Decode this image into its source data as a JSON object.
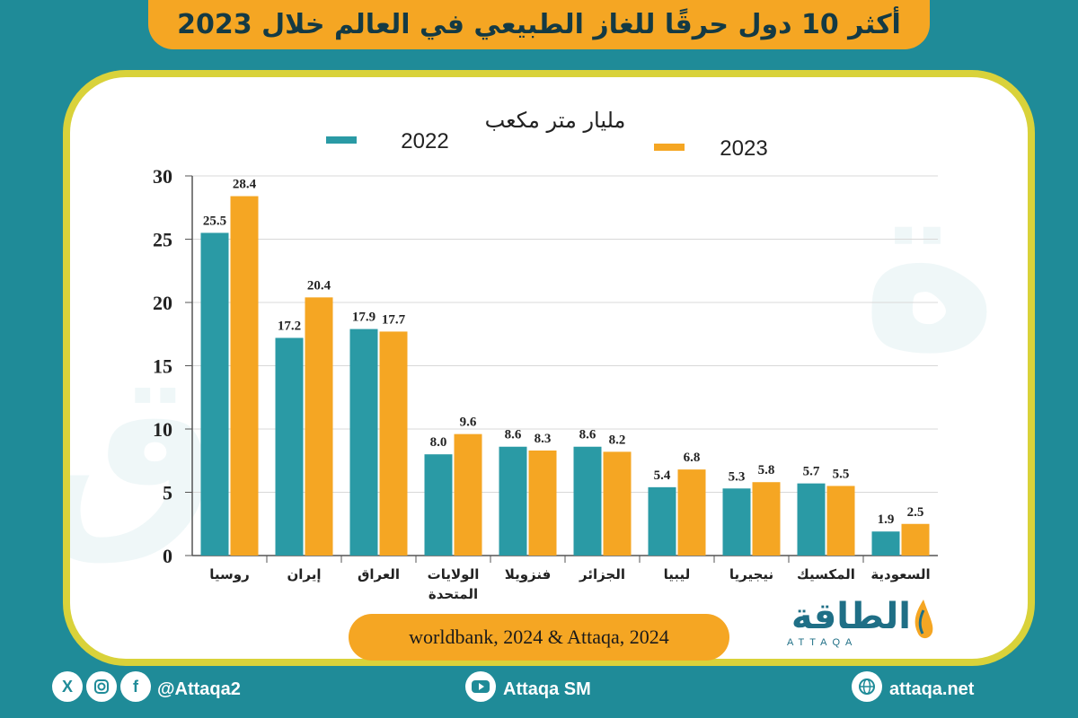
{
  "title": "أكثر 10 دول حرقًا للغاز الطبيعي في العالم خلال 2023",
  "source": "worldbank, 2024 & Attaqa, 2024",
  "logo": {
    "arabic": "الطاقة",
    "latin": "ATTAQA"
  },
  "footer": {
    "social_handle": "@Attaqa2",
    "youtube": "Attaqa SM",
    "website": "attaqa.net",
    "icons": [
      "x-icon",
      "instagram-icon",
      "facebook-icon",
      "youtube-icon",
      "globe-icon"
    ]
  },
  "colors": {
    "series_2022": "#2a9aa5",
    "series_2023": "#f5a623",
    "accent": "#d9d23a",
    "background": "#1f8b98"
  },
  "chart_data": {
    "type": "bar",
    "unit_label": "مليار متر مكعب",
    "categories": [
      "روسيا",
      "إيران",
      "العراق",
      "الولايات المتحدة",
      "فنزويلا",
      "الجزائر",
      "ليبيا",
      "نيجيريا",
      "المكسيك",
      "السعودية"
    ],
    "series": [
      {
        "name": "2022",
        "values": [
          25.5,
          17.2,
          17.9,
          8.0,
          8.6,
          8.6,
          5.4,
          5.3,
          5.7,
          1.9
        ]
      },
      {
        "name": "2023",
        "values": [
          28.4,
          20.4,
          17.7,
          9.6,
          8.3,
          8.2,
          6.8,
          5.8,
          5.5,
          2.5
        ]
      }
    ],
    "ylim": [
      0,
      30
    ],
    "yticks": [
      0,
      5,
      10,
      15,
      20,
      25,
      30
    ],
    "grid": true,
    "legend": "top"
  }
}
